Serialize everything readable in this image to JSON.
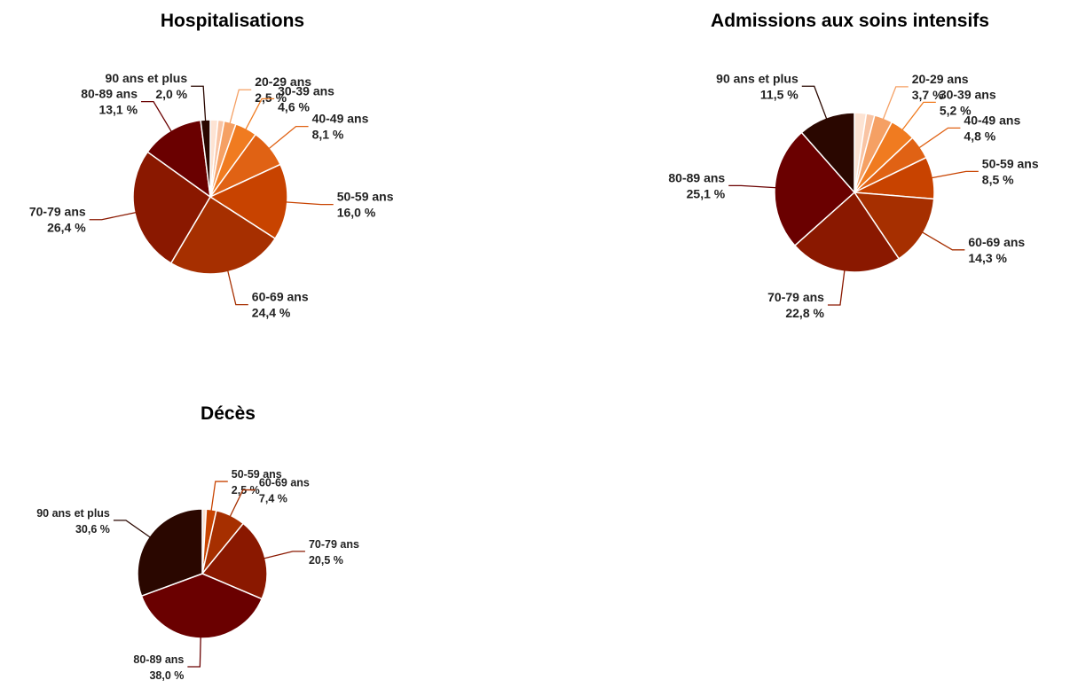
{
  "chart_data": [
    {
      "type": "pie",
      "title": "Hospitalisations",
      "categories": [
        null,
        null,
        "20-29 ans",
        "30-39 ans",
        "40-49 ans",
        "50-59 ans",
        "60-69 ans",
        "70-79 ans",
        "80-89 ans",
        "90 ans et plus"
      ],
      "values": [
        1.6,
        1.3,
        2.5,
        4.6,
        8.1,
        16.0,
        24.4,
        26.4,
        13.1,
        2.0
      ],
      "value_labels": [
        null,
        null,
        "2,5 %",
        "4,6 %",
        "8,1 %",
        "16,0 %",
        "24,4 %",
        "26,4 %",
        "13,1 %",
        "2,0 %"
      ],
      "colors": [
        "#fde3d3",
        "#f9c4a4",
        "#f5a064",
        "#f07b20",
        "#e06214",
        "#c84300",
        "#a62f00",
        "#8a1800",
        "#6a0000",
        "#2a0700"
      ]
    },
    {
      "type": "pie",
      "title": "Admissions aux soins intensifs",
      "categories": [
        null,
        null,
        "20-29 ans",
        "30-39 ans",
        "40-49 ans",
        "50-59 ans",
        "60-69 ans",
        "70-79 ans",
        "80-89 ans",
        "90 ans et plus"
      ],
      "values": [
        2.4,
        1.7,
        3.7,
        5.2,
        4.8,
        8.5,
        14.3,
        22.8,
        25.1,
        11.5
      ],
      "value_labels": [
        null,
        null,
        "3,7 %",
        "5,2 %",
        "4,8 %",
        "8,5 %",
        "14,3 %",
        "22,8 %",
        "25,1 %",
        "11,5 %"
      ],
      "colors": [
        "#fde3d3",
        "#f9c4a4",
        "#f5a064",
        "#f07b20",
        "#e06214",
        "#c84300",
        "#a62f00",
        "#8a1800",
        "#6a0000",
        "#2a0700"
      ]
    },
    {
      "type": "pie",
      "title": "Décès",
      "categories": [
        null,
        "50-59 ans",
        "60-69 ans",
        "70-79 ans",
        "80-89 ans",
        "90 ans et plus"
      ],
      "values": [
        1.0,
        2.5,
        7.4,
        20.5,
        38.0,
        30.6
      ],
      "value_labels": [
        null,
        "2,5 %",
        "7,4 %",
        "20,5 %",
        "38,0 %",
        "30,6 %"
      ],
      "colors": [
        "#fbe0d0",
        "#c84300",
        "#a62f00",
        "#8a1800",
        "#6a0000",
        "#2a0700"
      ]
    }
  ]
}
